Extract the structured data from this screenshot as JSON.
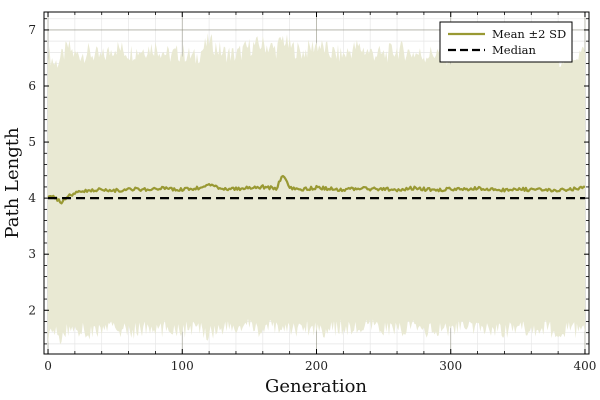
{
  "chart_data": {
    "type": "line",
    "title": "",
    "xlabel": "Generation",
    "ylabel": "Path Length",
    "xlim": [
      -3,
      403
    ],
    "ylim": [
      1.22,
      7.32
    ],
    "xticks": [
      0,
      100,
      200,
      300,
      400
    ],
    "yticks": [
      2,
      3,
      4,
      5,
      6,
      7
    ],
    "grid": true,
    "minor_grid": true,
    "legend_position": "top-right",
    "series": [
      {
        "name": "Mean ±2 SD",
        "color": "#999933",
        "style": "solid",
        "band_color": "#e9e9d3",
        "x": [
          0,
          5,
          10,
          15,
          20,
          30,
          40,
          50,
          60,
          70,
          80,
          90,
          100,
          110,
          120,
          130,
          140,
          150,
          160,
          170,
          175,
          180,
          190,
          200,
          210,
          220,
          230,
          240,
          250,
          260,
          270,
          280,
          290,
          300,
          310,
          320,
          330,
          340,
          350,
          360,
          370,
          380,
          390,
          400
        ],
        "mean": [
          4.05,
          4.02,
          3.92,
          4.03,
          4.1,
          4.14,
          4.16,
          4.13,
          4.17,
          4.15,
          4.18,
          4.16,
          4.15,
          4.17,
          4.22,
          4.18,
          4.16,
          4.19,
          4.2,
          4.17,
          4.42,
          4.18,
          4.16,
          4.19,
          4.17,
          4.15,
          4.18,
          4.16,
          4.17,
          4.15,
          4.18,
          4.16,
          4.14,
          4.17,
          4.15,
          4.18,
          4.16,
          4.14,
          4.17,
          4.15,
          4.16,
          4.14,
          4.15,
          4.2
        ],
        "upper": [
          6.6,
          6.4,
          6.5,
          6.7,
          6.55,
          6.6,
          6.5,
          6.7,
          6.6,
          6.65,
          6.7,
          6.55,
          6.6,
          6.5,
          6.8,
          6.6,
          6.55,
          6.7,
          6.75,
          6.65,
          6.85,
          6.7,
          6.6,
          6.75,
          6.6,
          6.55,
          6.7,
          6.6,
          6.55,
          6.65,
          6.6,
          6.55,
          6.6,
          6.5,
          6.55,
          6.65,
          6.6,
          6.5,
          6.6,
          6.55,
          6.6,
          6.5,
          6.55,
          6.6
        ],
        "lower": [
          1.55,
          1.6,
          1.5,
          1.65,
          1.7,
          1.6,
          1.65,
          1.7,
          1.6,
          1.68,
          1.62,
          1.7,
          1.65,
          1.68,
          1.6,
          1.7,
          1.66,
          1.72,
          1.64,
          1.7,
          1.68,
          1.65,
          1.7,
          1.68,
          1.65,
          1.7,
          1.66,
          1.7,
          1.68,
          1.65,
          1.7,
          1.66,
          1.62,
          1.68,
          1.7,
          1.65,
          1.68,
          1.64,
          1.7,
          1.66,
          1.68,
          1.62,
          1.65,
          1.6
        ]
      },
      {
        "name": "Median",
        "color": "#000000",
        "style": "dashed",
        "x": [
          0,
          400
        ],
        "values": [
          4.0,
          4.0
        ]
      }
    ]
  }
}
